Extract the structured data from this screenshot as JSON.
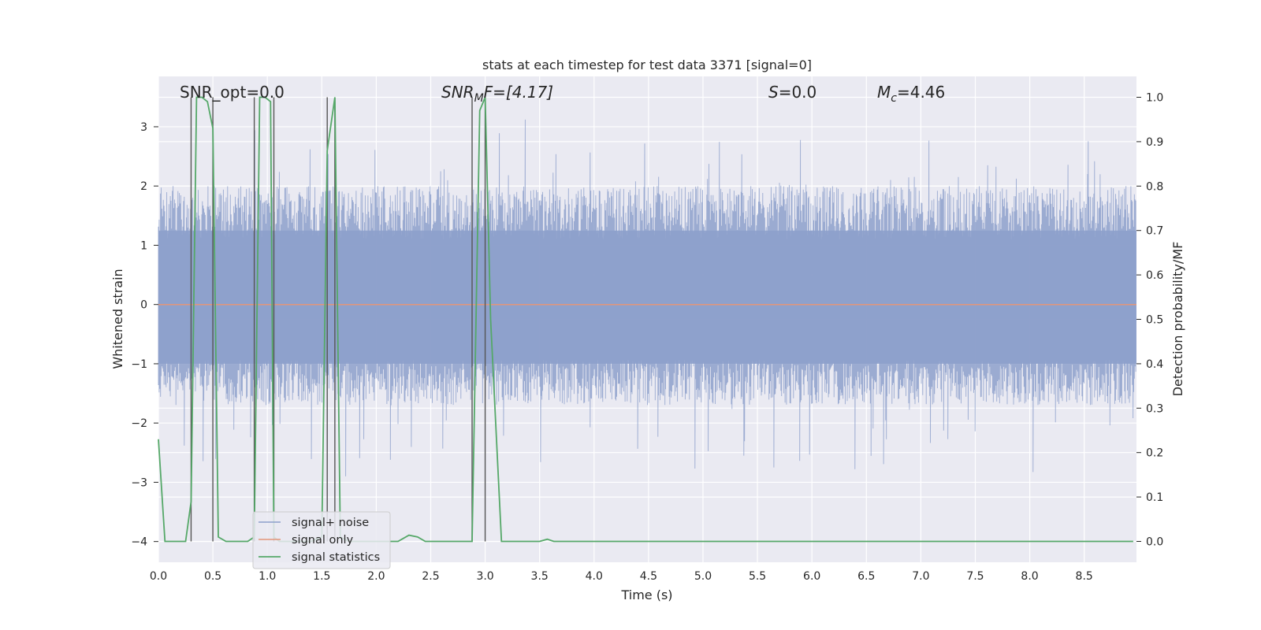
{
  "chart_data": {
    "type": "line",
    "title": "stats at each timestep for test data 3371 [signal=0]",
    "xlabel": "Time (s)",
    "ylabel": "Whitened strain",
    "y2label": "Detection probability/MF",
    "xlim": [
      0,
      8.98
    ],
    "ylim": [
      -4.35,
      3.85
    ],
    "y2lim": [
      -0.047,
      1.047
    ],
    "grid": true,
    "xticks": [
      0.0,
      0.5,
      1.0,
      1.5,
      2.0,
      2.5,
      3.0,
      3.5,
      4.0,
      4.5,
      5.0,
      5.5,
      6.0,
      6.5,
      7.0,
      7.5,
      8.0,
      8.5
    ],
    "xtick_labels": [
      "0.0",
      "0.5",
      "1.0",
      "1.5",
      "2.0",
      "2.5",
      "3.0",
      "3.5",
      "4.0",
      "4.5",
      "5.0",
      "5.5",
      "6.0",
      "6.5",
      "7.0",
      "7.5",
      "8.0",
      "8.5"
    ],
    "yticks": [
      3,
      2,
      1,
      0,
      -1,
      -2,
      -3,
      -4
    ],
    "ytick_labels": [
      "3",
      "2",
      "1",
      "0",
      "−1",
      "−2",
      "−3",
      "−4"
    ],
    "y2ticks": [
      1.0,
      0.9,
      0.8,
      0.7,
      0.6,
      0.5,
      0.4,
      0.3,
      0.2,
      0.1,
      0.0
    ],
    "y2tick_labels": [
      "1.0",
      "0.9",
      "0.8",
      "0.7",
      "0.6",
      "0.5",
      "0.4",
      "0.3",
      "0.2",
      "0.1",
      "0.0"
    ],
    "annotations": {
      "snr_opt": "SNR_opt=0.0",
      "snr_mf_base": "SNR",
      "snr_mf_sub": "M",
      "snr_mf_rest": "F=[4.17]",
      "s_italic": "S",
      "s_rest": "=0.0",
      "mc_base": "M",
      "mc_sub": "c",
      "mc_rest": "=4.46"
    },
    "legend": {
      "placement": "lower-left",
      "entries": [
        "signal+ noise",
        "signal only",
        "signal statistics"
      ]
    },
    "colors": {
      "noise": "#8da0cb",
      "signal_only": "#e3967a",
      "statistics": "#55a868",
      "vlines": "#555555",
      "background": "#eaeaf2",
      "grid": "#ffffff"
    },
    "noise_envelope": {
      "typical_range": [
        -1.7,
        2.0
      ],
      "peak_max": 3.5,
      "peak_min": -3.3
    },
    "signal_only_value": 0.0,
    "vertical_lines_x": [
      0.3,
      0.5,
      0.88,
      1.06,
      1.55,
      1.62,
      2.88,
      3.0
    ],
    "series": [
      {
        "name": "signal statistics",
        "axis": "right",
        "x": [
          0.0,
          0.06,
          0.25,
          0.3,
          0.35,
          0.4,
          0.45,
          0.5,
          0.55,
          0.62,
          0.75,
          0.82,
          0.88,
          0.93,
          0.98,
          1.03,
          1.06,
          1.11,
          1.2,
          1.4,
          1.5,
          1.55,
          1.62,
          1.67,
          1.75,
          2.0,
          2.2,
          2.3,
          2.38,
          2.45,
          2.85,
          2.88,
          2.95,
          3.0,
          3.05,
          3.15,
          3.5,
          3.57,
          3.63,
          8.95
        ],
        "values": [
          0.23,
          0.0,
          0.0,
          0.09,
          1.0,
          1.0,
          0.99,
          0.93,
          0.01,
          0.0,
          0.0,
          0.0,
          0.01,
          1.0,
          1.0,
          0.99,
          0.01,
          0.0,
          0.0,
          0.0,
          0.01,
          0.88,
          1.0,
          0.01,
          0.0,
          0.0,
          0.0,
          0.014,
          0.01,
          0.0,
          0.0,
          0.0,
          0.97,
          1.0,
          0.5,
          0.0,
          0.0,
          0.005,
          0.0,
          0.0
        ]
      }
    ]
  }
}
